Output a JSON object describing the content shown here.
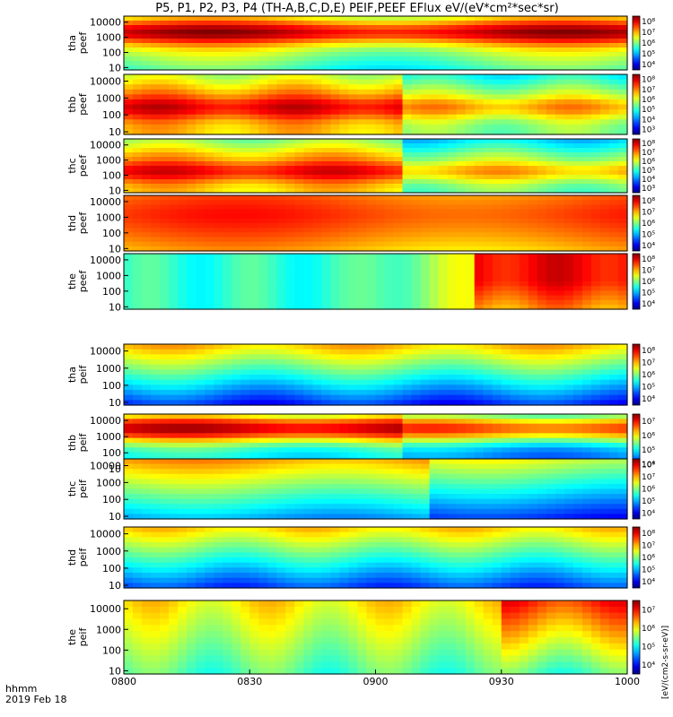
{
  "title": "P5, P1, P2, P3, P4 (TH-A,B,C,D,E) PEIF,PEEF EFlux eV/(eV*cm²*sec*sr)",
  "colorbar_label": "[eV/(cm2-s-sr-eV)]",
  "chart_data": {
    "type": "heatmap",
    "x_tick_labels": [
      "0800",
      "0830",
      "0900",
      "0930",
      "1000"
    ],
    "x_axis_label": "hhmm",
    "date_label": "2019 Feb 18",
    "y_tick_labels": [
      "10",
      "100",
      "1000",
      "10000"
    ],
    "y_scale": "log",
    "panels": [
      {
        "label": "tha peef",
        "cbar_ticks": [
          "10⁴",
          "10⁵",
          "10⁶",
          "10⁷",
          "10⁸"
        ]
      },
      {
        "label": "thb peef",
        "cbar_ticks": [
          "10³",
          "10⁴",
          "10⁵",
          "10⁶",
          "10⁷",
          "10⁸"
        ]
      },
      {
        "label": "thc peef",
        "cbar_ticks": [
          "10³",
          "10⁴",
          "10⁵",
          "10⁶",
          "10⁷",
          "10⁸"
        ]
      },
      {
        "label": "thd peef",
        "cbar_ticks": [
          "10⁴",
          "10⁵",
          "10⁶",
          "10⁷",
          "10⁸"
        ]
      },
      {
        "label": "the peef",
        "cbar_ticks": [
          "10⁴",
          "10⁵",
          "10⁶",
          "10⁷",
          "10⁸"
        ]
      },
      {
        "label": "tha peif",
        "cbar_ticks": [
          "10⁴",
          "10⁵",
          "10⁶",
          "10⁷",
          "10⁸"
        ]
      },
      {
        "label": "thb peif",
        "cbar_ticks": [
          "10⁴",
          "10⁵",
          "10⁶",
          "10⁷"
        ]
      },
      {
        "label": "thc peif",
        "cbar_ticks": [
          "10⁴",
          "10⁵",
          "10⁶",
          "10⁷",
          "10⁸"
        ]
      },
      {
        "label": "thd peif",
        "cbar_ticks": [
          "10⁴",
          "10⁵",
          "10⁶",
          "10⁷",
          "10⁸"
        ]
      },
      {
        "label": "the peif",
        "cbar_ticks": [
          "10⁴",
          "10⁵",
          "10⁶",
          "10⁷"
        ]
      }
    ]
  }
}
